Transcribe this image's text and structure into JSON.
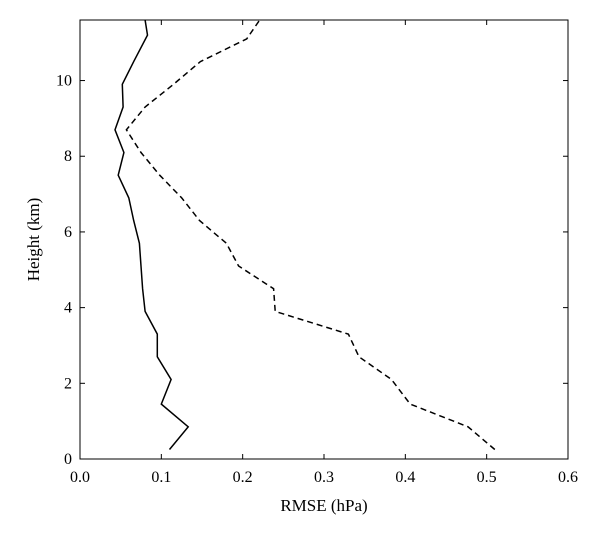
{
  "chart_data": {
    "type": "line",
    "title": "",
    "xlabel": "RMSE (hPa)",
    "ylabel": "Height (km)",
    "xlim": [
      0.0,
      0.6
    ],
    "ylim": [
      0,
      11.6
    ],
    "xticks": [
      "0.0",
      "0.1",
      "0.2",
      "0.3",
      "0.4",
      "0.5",
      "0.6"
    ],
    "yticks": [
      "0",
      "2",
      "4",
      "6",
      "8",
      "10"
    ],
    "grid": false,
    "legend": "none",
    "series": [
      {
        "style": "solid",
        "color": "#000000",
        "points": [
          [
            0.11,
            0.25
          ],
          [
            0.133,
            0.85
          ],
          [
            0.1,
            1.45
          ],
          [
            0.112,
            2.1
          ],
          [
            0.095,
            2.7
          ],
          [
            0.095,
            3.3
          ],
          [
            0.08,
            3.9
          ],
          [
            0.077,
            4.5
          ],
          [
            0.075,
            5.1
          ],
          [
            0.073,
            5.7
          ],
          [
            0.066,
            6.3
          ],
          [
            0.06,
            6.9
          ],
          [
            0.047,
            7.5
          ],
          [
            0.054,
            8.1
          ],
          [
            0.043,
            8.7
          ],
          [
            0.053,
            9.3
          ],
          [
            0.052,
            9.9
          ],
          [
            0.066,
            10.5
          ],
          [
            0.083,
            11.2
          ],
          [
            0.08,
            11.6
          ]
        ]
      },
      {
        "style": "dashed",
        "color": "#000000",
        "points": [
          [
            0.51,
            0.25
          ],
          [
            0.477,
            0.85
          ],
          [
            0.406,
            1.45
          ],
          [
            0.383,
            2.1
          ],
          [
            0.343,
            2.7
          ],
          [
            0.33,
            3.3
          ],
          [
            0.24,
            3.9
          ],
          [
            0.238,
            4.5
          ],
          [
            0.195,
            5.1
          ],
          [
            0.18,
            5.7
          ],
          [
            0.147,
            6.3
          ],
          [
            0.125,
            6.9
          ],
          [
            0.098,
            7.5
          ],
          [
            0.075,
            8.1
          ],
          [
            0.057,
            8.7
          ],
          [
            0.08,
            9.3
          ],
          [
            0.115,
            9.9
          ],
          [
            0.148,
            10.5
          ],
          [
            0.205,
            11.1
          ],
          [
            0.221,
            11.6
          ]
        ]
      }
    ]
  }
}
